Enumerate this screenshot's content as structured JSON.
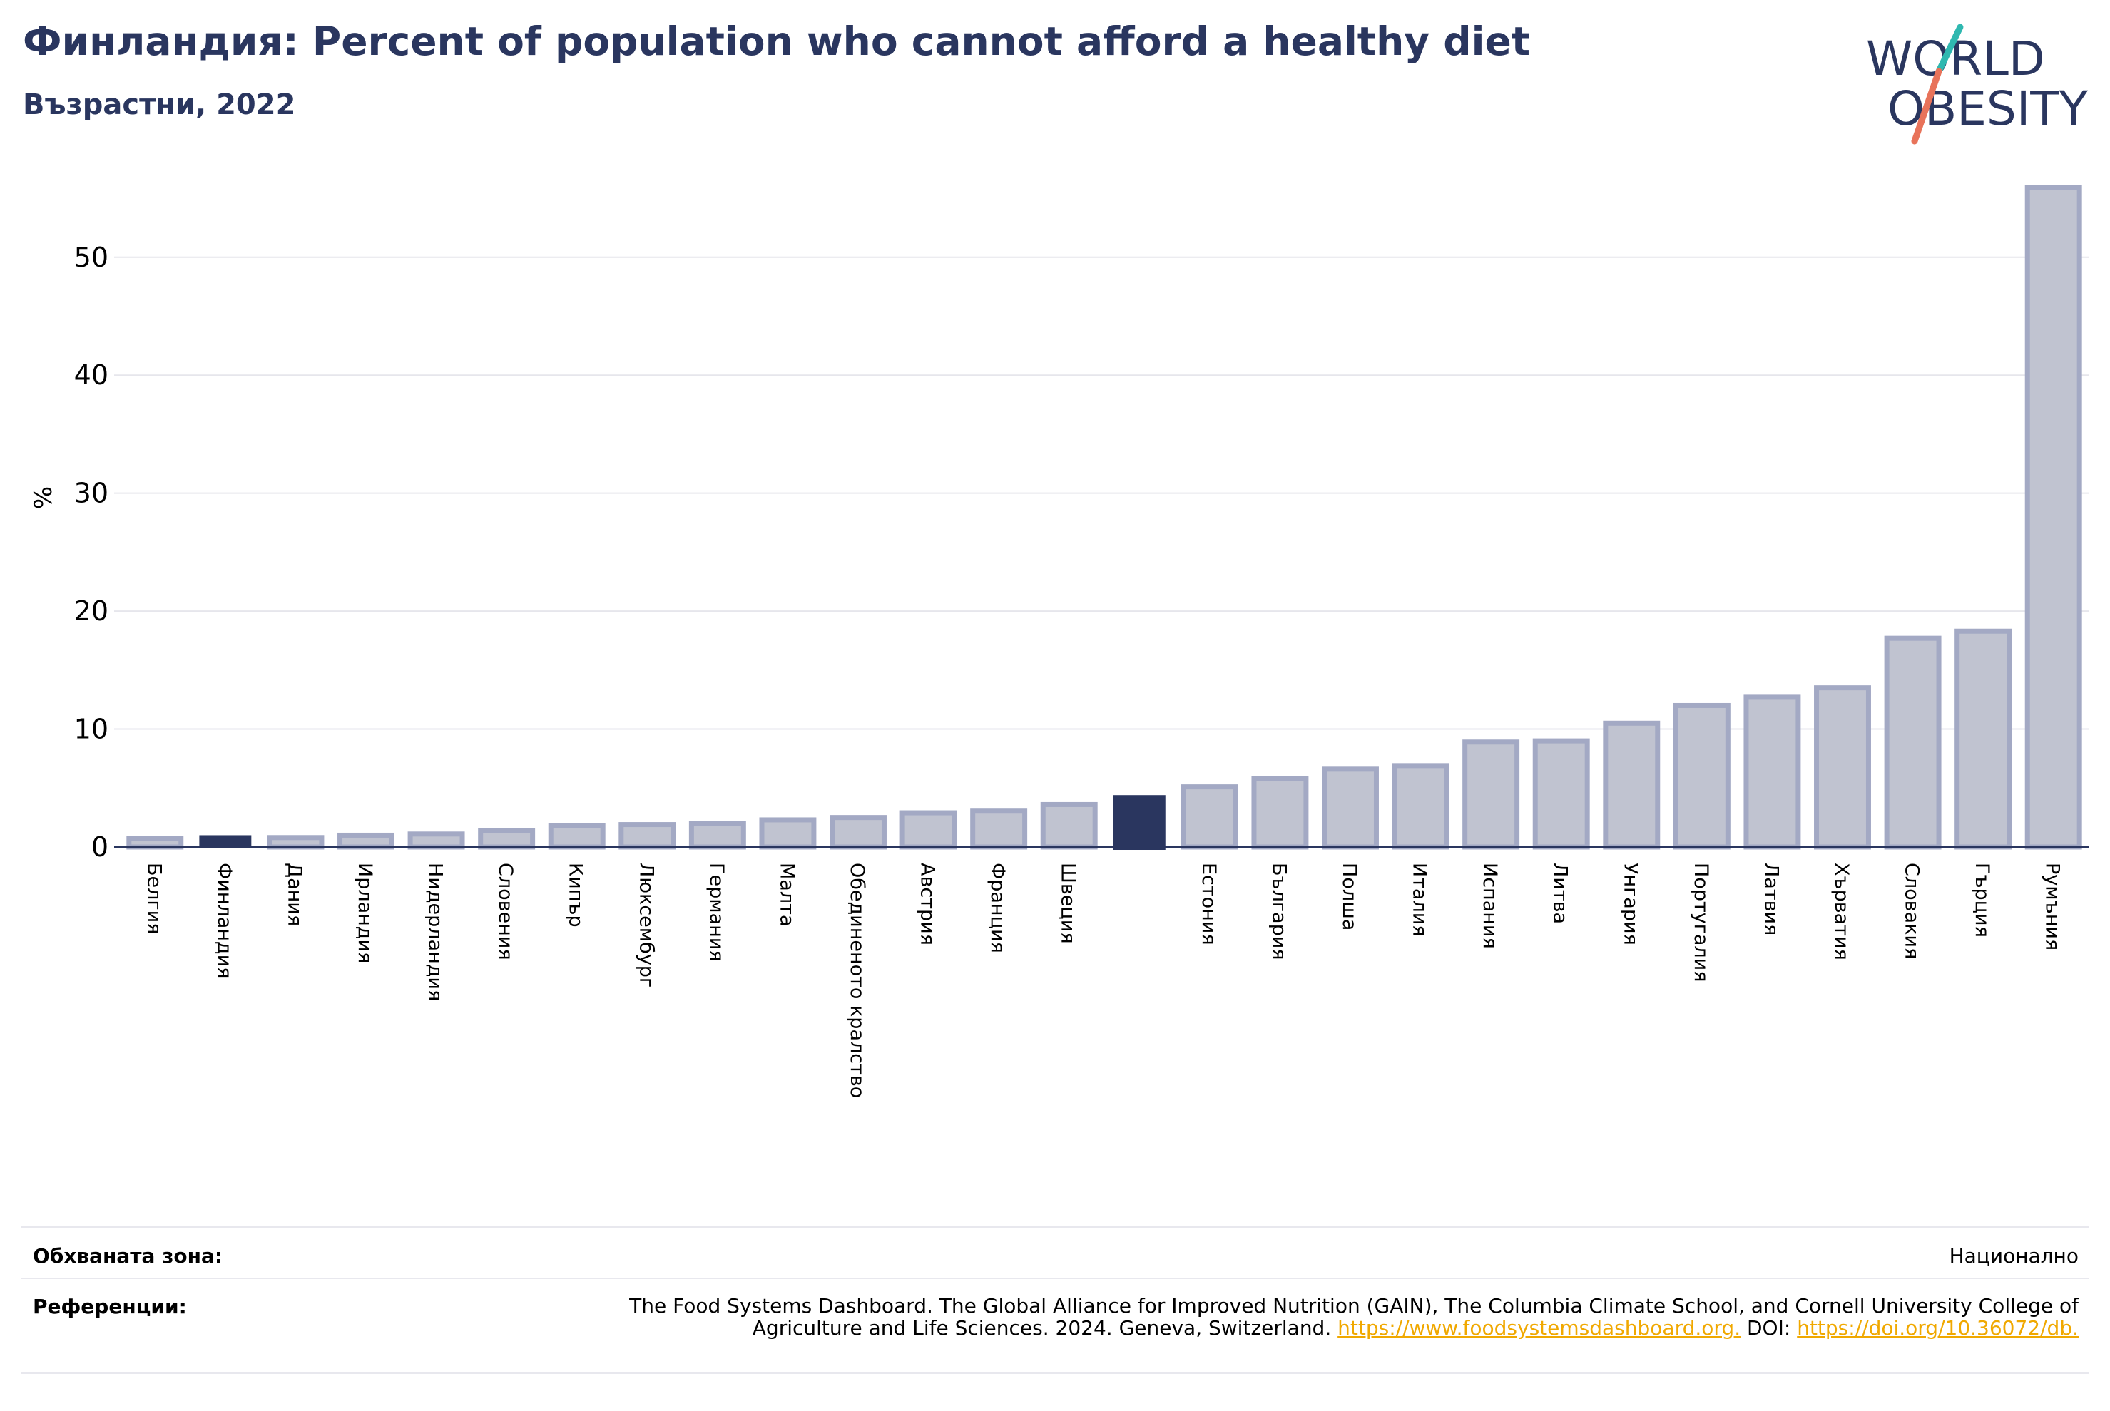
{
  "header": {
    "title": "Финландия: Percent of population who cannot afford a healthy diet",
    "subtitle": "Възрастни, 2022"
  },
  "logo": {
    "line1": "WORLD",
    "line2": "OBESITY"
  },
  "chart_data": {
    "type": "bar",
    "ylabel": "%",
    "ylim": [
      0,
      57
    ],
    "yticks": [
      0,
      10,
      20,
      30,
      40,
      50
    ],
    "grid": true,
    "categories": [
      "Белгия",
      "Финландия",
      "Дания",
      "Ирландия",
      "Нидерландия",
      "Словения",
      "Кипър",
      "Люксембург",
      "Германия",
      "Малта",
      "Обединеното кралство",
      "Австрия",
      "Франция",
      "Швеция",
      "",
      "Естония",
      "България",
      "Полша",
      "Италия",
      "Испания",
      "Литва",
      "Унгария",
      "Португалия",
      "Латвия",
      "Хърватия",
      "Словакия",
      "Гърция",
      "Румъния"
    ],
    "values": [
      0.7,
      1.0,
      0.8,
      1.0,
      1.1,
      1.4,
      1.8,
      1.9,
      2.0,
      2.3,
      2.5,
      2.9,
      3.1,
      3.6,
      4.4,
      5.1,
      5.8,
      6.6,
      6.9,
      8.9,
      9.0,
      10.5,
      12.0,
      12.7,
      13.5,
      17.7,
      18.3,
      55.9
    ],
    "highlight_indices": [
      1,
      14
    ],
    "colors": {
      "bar": "#c0c3d0",
      "bar_edge": "#a3a9c4",
      "highlight": "#2a365f",
      "axis": "#2a365f",
      "grid": "#e6e6ec"
    }
  },
  "footer": {
    "coverage_label": "Обхваната зона:",
    "coverage_value": "Национално",
    "references_label": "Референции:",
    "references_text": "The Food Systems Dashboard. The Global Alliance for Improved Nutrition (GAIN), The Columbia Climate School, and Cornell University College of Agriculture and Life Sciences. 2024. Geneva, Switzerland.",
    "references_link1": "https://www.foodsystemsdashboard.org.",
    "references_doi_label": "DOI:",
    "references_link2": "https://doi.org/10.36072/db."
  }
}
